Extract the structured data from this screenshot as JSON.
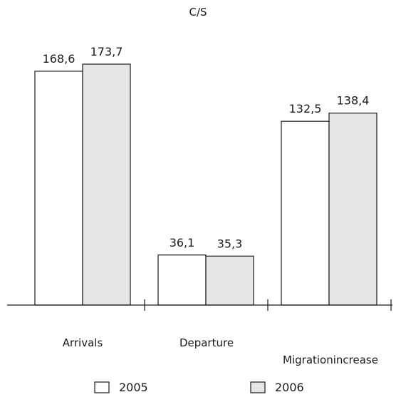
{
  "chart_data": {
    "type": "bar",
    "title": "C/S",
    "categories": [
      "Arrivals",
      "Departure",
      "Migrationincrease"
    ],
    "series": [
      {
        "name": "2005",
        "values": [
          168.6,
          36.1,
          132.5
        ],
        "labels": [
          "168,6",
          "36,1",
          "132,5"
        ],
        "color": "#ffffff"
      },
      {
        "name": "2006",
        "values": [
          173.7,
          35.3,
          138.4
        ],
        "labels": [
          "173,7",
          "35,3",
          "138,4"
        ],
        "color": "#e6e6e6"
      }
    ],
    "ylim": [
      0,
      173.7
    ],
    "grid": false,
    "legend": "bottom"
  }
}
